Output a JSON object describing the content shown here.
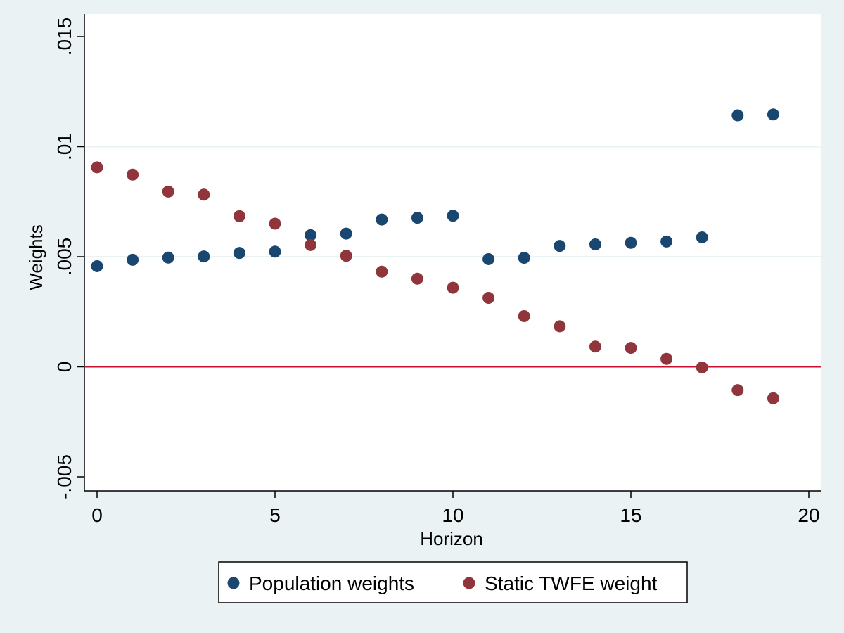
{
  "chart_data": {
    "type": "scatter",
    "xlabel": "Horizon",
    "ylabel": "Weights",
    "xlim": [
      0,
      20
    ],
    "ylim": [
      -0.005,
      0.015
    ],
    "x_ticks": [
      {
        "value": 0,
        "label": "0"
      },
      {
        "value": 5,
        "label": "5"
      },
      {
        "value": 10,
        "label": "10"
      },
      {
        "value": 15,
        "label": "15"
      },
      {
        "value": 20,
        "label": "20"
      }
    ],
    "y_ticks": [
      {
        "value": -0.005,
        "label": "-.005"
      },
      {
        "value": 0,
        "label": "0"
      },
      {
        "value": 0.005,
        "label": ".005"
      },
      {
        "value": 0.01,
        "label": ".01"
      },
      {
        "value": 0.015,
        "label": ".015"
      }
    ],
    "grid": true,
    "reference_line": {
      "y": 0,
      "color": "#c8102e"
    },
    "legend_position": "bottom",
    "x": [
      0,
      1,
      2,
      3,
      4,
      5,
      6,
      7,
      8,
      9,
      10,
      11,
      12,
      13,
      14,
      15,
      16,
      17,
      18,
      19
    ],
    "series": [
      {
        "name": "Population weights",
        "color": "#1a476f",
        "values": [
          0.00457,
          0.00486,
          0.00496,
          0.00501,
          0.00517,
          0.00523,
          0.00598,
          0.00605,
          0.00669,
          0.00677,
          0.00686,
          0.00489,
          0.00495,
          0.00549,
          0.00556,
          0.00563,
          0.00569,
          0.00588,
          0.01142,
          0.01146
        ]
      },
      {
        "name": "Static TWFE weight",
        "color": "#90353b",
        "values": [
          0.00906,
          0.00873,
          0.00796,
          0.00782,
          0.00684,
          0.0065,
          0.00553,
          0.00504,
          0.00432,
          0.004,
          0.00359,
          0.00313,
          0.0023,
          0.00184,
          0.00092,
          0.00086,
          0.00036,
          -3e-05,
          -0.00106,
          -0.00143
        ]
      }
    ]
  }
}
